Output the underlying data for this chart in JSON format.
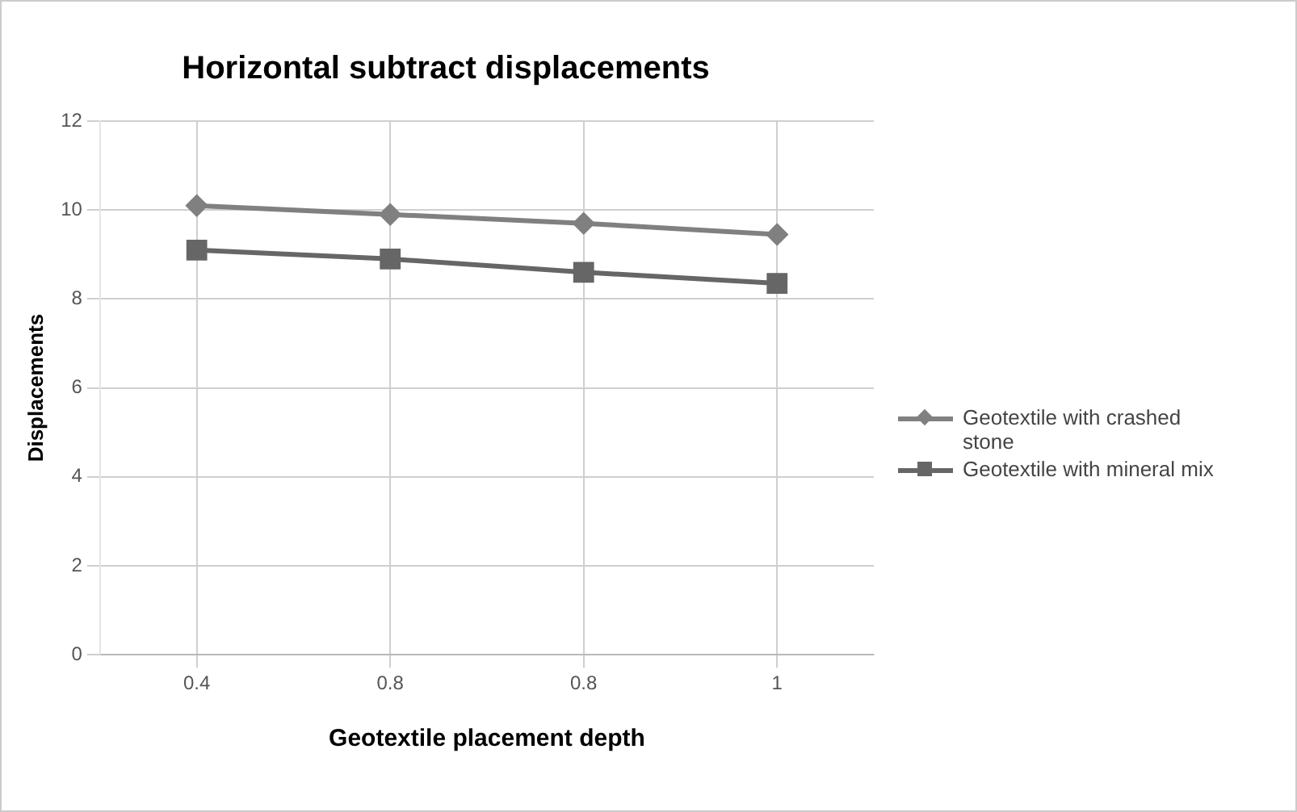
{
  "chart_data": {
    "type": "line",
    "title": "Horizontal subtract displacements",
    "xlabel": "Geotextile placement depth",
    "ylabel": "Displacements",
    "categories": [
      "0.4",
      "0.8",
      "0.8",
      "1"
    ],
    "series": [
      {
        "name": "Geotextile with crashed stone",
        "color": "#808080",
        "marker": "diamond",
        "values": [
          10.1,
          9.9,
          9.7,
          9.45
        ]
      },
      {
        "name": "Geotextile with mineral mix",
        "color": "#666666",
        "marker": "square",
        "values": [
          9.1,
          8.9,
          8.6,
          8.35
        ]
      }
    ],
    "ylim": [
      0,
      12
    ],
    "yticks": [
      0,
      2,
      4,
      6,
      8,
      10,
      12
    ],
    "grid": true,
    "legend": "right"
  }
}
